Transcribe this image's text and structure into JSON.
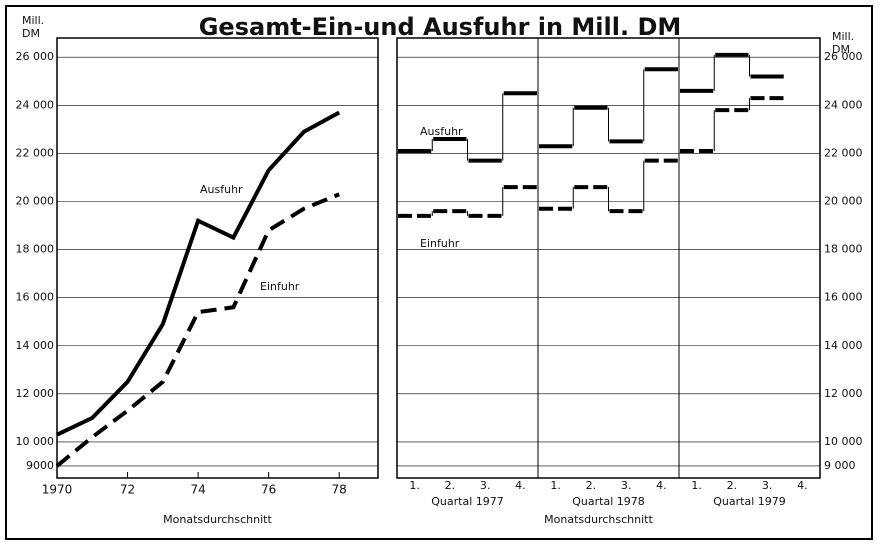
{
  "chart_data": [
    {
      "type": "line",
      "title": "Gesamt-Ein-und Ausfuhr in Mill. DM",
      "ylabel": "Mill. DM",
      "xlabel": "Monatsdurchschnitt",
      "x": [
        1970,
        1971,
        1972,
        1973,
        1974,
        1975,
        1976,
        1977,
        1978
      ],
      "xlim": [
        1970,
        1979.1
      ],
      "xticks": [
        1970,
        {
          "value": 1972,
          "label": "72"
        },
        {
          "value": 1974,
          "label": "74"
        },
        {
          "value": 1976,
          "label": "76"
        },
        {
          "value": 1978,
          "label": "78"
        }
      ],
      "ylim": [
        8500,
        26800
      ],
      "yticks": [
        9000,
        {
          "value": 10000,
          "label": "10 000"
        },
        {
          "value": 12000,
          "label": "12 000"
        },
        {
          "value": 14000,
          "label": "14 000"
        },
        {
          "value": 16000,
          "label": "16 000"
        },
        {
          "value": 18000,
          "label": "18 000"
        },
        {
          "value": 20000,
          "label": "20 000"
        },
        {
          "value": 22000,
          "label": "22 000"
        },
        {
          "value": 24000,
          "label": "24 000"
        },
        {
          "value": 26000,
          "label": "26 000"
        }
      ],
      "grid": true,
      "series": [
        {
          "name": "Ausfuhr",
          "color": "#000000",
          "dashed": false,
          "values": [
            10300,
            11000,
            12500,
            14900,
            19200,
            18500,
            21300,
            22900,
            23700
          ]
        },
        {
          "name": "Einfuhr",
          "color": "#000000",
          "dashed": true,
          "values": [
            9000,
            10200,
            11300,
            12500,
            15400,
            15600,
            18800,
            19700,
            20300
          ]
        }
      ]
    },
    {
      "type": "step",
      "ylabel": "Mill. DM",
      "xlabel": "Monatsdurchschnitt",
      "categories": [
        "1.",
        "2.",
        "3.",
        "4.",
        "1.",
        "2.",
        "3.",
        "4.",
        "1.",
        "2.",
        "3.",
        "4."
      ],
      "groups": [
        "Quartal 1977",
        "Quartal 1978",
        "Quartal 1979"
      ],
      "ylim": [
        8500,
        26800
      ],
      "yticks": [
        {
          "value": 9000,
          "label": "9 000"
        },
        {
          "value": 10000,
          "label": "10 000"
        },
        {
          "value": 12000,
          "label": "12 000"
        },
        {
          "value": 14000,
          "label": "14 000"
        },
        {
          "value": 16000,
          "label": "16 000"
        },
        {
          "value": 18000,
          "label": "18 000"
        },
        {
          "value": 20000,
          "label": "20 000"
        },
        {
          "value": 22000,
          "label": "22 000"
        },
        {
          "value": 24000,
          "label": "24 000"
        },
        {
          "value": 26000,
          "label": "26 000"
        }
      ],
      "grid": true,
      "series": [
        {
          "name": "Ausfuhr",
          "color": "#000000",
          "dashed": false,
          "values": [
            22100,
            22600,
            21700,
            24500,
            22300,
            23900,
            22500,
            25500,
            24600,
            26100,
            25200,
            null
          ]
        },
        {
          "name": "Einfuhr",
          "color": "#000000",
          "dashed": true,
          "values": [
            19400,
            19600,
            19400,
            20600,
            19700,
            20600,
            19600,
            21700,
            22100,
            23800,
            24300,
            null
          ]
        }
      ]
    }
  ]
}
